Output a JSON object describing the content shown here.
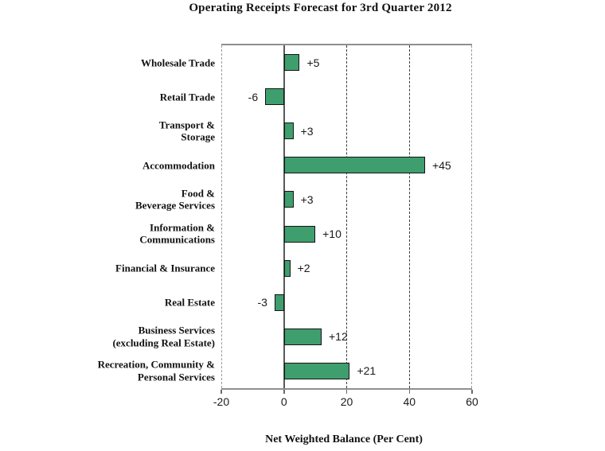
{
  "chart_data": {
    "type": "bar",
    "orientation": "horizontal",
    "title": "Operating Receipts Forecast for 3rd Quarter 2012",
    "xlabel": "Net Weighted Balance (Per Cent)",
    "categories": [
      [
        "Wholesale Trade"
      ],
      [
        "Retail Trade"
      ],
      [
        "Transport &",
        "Storage"
      ],
      [
        "Accommodation"
      ],
      [
        "Food &",
        "Beverage Services"
      ],
      [
        "Information &",
        "Communications"
      ],
      [
        "Financial & Insurance"
      ],
      [
        "Real Estate"
      ],
      [
        "Business Services",
        "(excluding Real Estate)"
      ],
      [
        "Recreation, Community &",
        "Personal Services"
      ]
    ],
    "values": [
      5,
      -6,
      3,
      45,
      3,
      10,
      2,
      -3,
      12,
      21
    ],
    "value_labels": [
      "+5",
      "-6",
      "+3",
      "+45",
      "+3",
      "+10",
      "+2",
      "-3",
      "+12",
      "+21"
    ],
    "xlim": [
      -20,
      60
    ],
    "xticks": [
      "-20",
      "0",
      "20",
      "40",
      "60"
    ],
    "xtick_values": [
      -20,
      0,
      20,
      40,
      60
    ],
    "frame_grid_xs": [
      -20,
      60
    ],
    "inner_grid_xs": [
      20,
      40
    ],
    "zero_line_x": 0,
    "grid_style": "dashed",
    "legend": "none",
    "colors": {
      "bar_fill": "#3F9E6D",
      "bar_border": "#141414",
      "zero_line": "#595959",
      "frame": "#8F8F8F",
      "inner_grid": "#3A3A3A",
      "outer_grid": "#9A9A9A",
      "text": "#111111",
      "value_text": "#1A1A1A"
    }
  }
}
